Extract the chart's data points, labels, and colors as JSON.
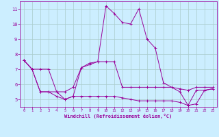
{
  "xlabel": "Windchill (Refroidissement éolien,°C)",
  "bg_color": "#cceeff",
  "line_color": "#990099",
  "grid_color": "#aacccc",
  "xlim": [
    -0.5,
    23.5
  ],
  "ylim": [
    4.5,
    11.5
  ],
  "yticks": [
    5,
    6,
    7,
    8,
    9,
    10,
    11
  ],
  "xticks": [
    0,
    1,
    2,
    3,
    4,
    5,
    6,
    7,
    8,
    9,
    10,
    11,
    12,
    13,
    14,
    15,
    16,
    17,
    18,
    19,
    20,
    21,
    22,
    23
  ],
  "series1": [
    [
      0,
      7.6
    ],
    [
      1,
      7.0
    ],
    [
      2,
      7.0
    ],
    [
      3,
      7.0
    ],
    [
      4,
      5.5
    ],
    [
      5,
      5.0
    ],
    [
      6,
      5.2
    ],
    [
      7,
      7.1
    ],
    [
      8,
      7.4
    ],
    [
      9,
      7.5
    ],
    [
      10,
      11.2
    ],
    [
      11,
      10.7
    ],
    [
      12,
      10.1
    ],
    [
      13,
      10.0
    ],
    [
      14,
      11.0
    ],
    [
      15,
      9.0
    ],
    [
      16,
      8.4
    ],
    [
      17,
      6.1
    ],
    [
      18,
      5.8
    ],
    [
      19,
      5.5
    ],
    [
      20,
      4.6
    ],
    [
      21,
      5.6
    ],
    [
      22,
      5.6
    ],
    [
      23,
      5.7
    ]
  ],
  "series2": [
    [
      0,
      7.6
    ],
    [
      1,
      7.0
    ],
    [
      2,
      5.5
    ],
    [
      3,
      5.5
    ],
    [
      4,
      5.5
    ],
    [
      5,
      5.5
    ],
    [
      6,
      5.8
    ],
    [
      7,
      7.1
    ],
    [
      8,
      7.3
    ],
    [
      9,
      7.5
    ],
    [
      10,
      7.5
    ],
    [
      11,
      7.5
    ],
    [
      12,
      5.8
    ],
    [
      13,
      5.8
    ],
    [
      14,
      5.8
    ],
    [
      15,
      5.8
    ],
    [
      16,
      5.8
    ],
    [
      17,
      5.8
    ],
    [
      18,
      5.8
    ],
    [
      19,
      5.7
    ],
    [
      20,
      5.6
    ],
    [
      21,
      5.8
    ],
    [
      22,
      5.8
    ],
    [
      23,
      5.8
    ]
  ],
  "series3": [
    [
      0,
      7.6
    ],
    [
      1,
      7.0
    ],
    [
      2,
      5.5
    ],
    [
      3,
      5.5
    ],
    [
      4,
      5.2
    ],
    [
      5,
      5.0
    ],
    [
      6,
      5.2
    ],
    [
      7,
      5.2
    ],
    [
      8,
      5.2
    ],
    [
      9,
      5.2
    ],
    [
      10,
      5.2
    ],
    [
      11,
      5.2
    ],
    [
      12,
      5.1
    ],
    [
      13,
      5.0
    ],
    [
      14,
      4.9
    ],
    [
      15,
      4.9
    ],
    [
      16,
      4.9
    ],
    [
      17,
      4.9
    ],
    [
      18,
      4.9
    ],
    [
      19,
      4.8
    ],
    [
      20,
      4.6
    ],
    [
      21,
      4.7
    ],
    [
      22,
      5.6
    ],
    [
      23,
      5.7
    ]
  ]
}
